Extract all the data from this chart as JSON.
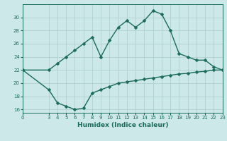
{
  "xlabel": "Humidex (Indice chaleur)",
  "ylabel": "",
  "background_color": "#cce8e8",
  "grid_color": "#b0d0d0",
  "line_color": "#1a6b5a",
  "x_upper": [
    0,
    3,
    4,
    5,
    6,
    7,
    8,
    9,
    10,
    11,
    12,
    13,
    14,
    15,
    16,
    17,
    18,
    19,
    20,
    21,
    22,
    23
  ],
  "y_upper": [
    22,
    22,
    23,
    24,
    25,
    26,
    27,
    24,
    26.5,
    28.5,
    29.5,
    28.5,
    29.5,
    31,
    30.5,
    28,
    24.5,
    24,
    23.5,
    23.5,
    22.5,
    22
  ],
  "x_lower": [
    0,
    3,
    4,
    5,
    6,
    7,
    8,
    9,
    10,
    11,
    12,
    13,
    14,
    15,
    16,
    17,
    18,
    19,
    20,
    21,
    22,
    23
  ],
  "y_lower": [
    22,
    19,
    17,
    16.5,
    16,
    16.2,
    18.5,
    19,
    19.5,
    20,
    20.2,
    20.4,
    20.6,
    20.8,
    21,
    21.2,
    21.4,
    21.5,
    21.7,
    21.8,
    22,
    22
  ],
  "ylim": [
    15.5,
    32
  ],
  "yticks": [
    16,
    18,
    20,
    22,
    24,
    26,
    28,
    30
  ],
  "xlim": [
    0,
    23
  ],
  "xticks": [
    0,
    3,
    4,
    5,
    6,
    7,
    8,
    9,
    10,
    11,
    12,
    13,
    14,
    15,
    16,
    17,
    18,
    19,
    20,
    21,
    22,
    23
  ],
  "markersize": 2.5,
  "linewidth": 1.0,
  "axis_fontsize": 6.5,
  "tick_fontsize": 5.0
}
